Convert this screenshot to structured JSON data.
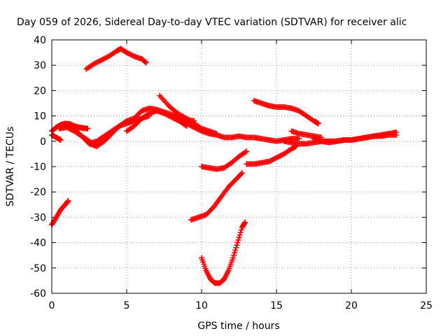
{
  "chart_data": {
    "type": "scatter",
    "title": "Day 059 of 2026, Sidereal Day-to-day VTEC variation (SDTVAR) for receiver alic",
    "xlabel": "GPS time / hours",
    "ylabel": "SDTVAR / TECUs",
    "xlim": [
      0,
      25
    ],
    "ylim": [
      -60,
      40
    ],
    "xticks": [
      "0",
      "5",
      "10",
      "15",
      "20",
      "25"
    ],
    "yticks": [
      "-60",
      "-50",
      "-40",
      "-30",
      "-20",
      "-10",
      "0",
      "10",
      "20",
      "30",
      "40"
    ],
    "grid": true,
    "legend": "none",
    "marker": "plus",
    "color": "#ff0000",
    "series": [
      {
        "x": [
          0.0,
          0.3,
          0.6,
          0.9,
          1.2,
          1.5,
          1.8,
          2.1,
          2.4
        ],
        "y": [
          4,
          5.5,
          6.5,
          7,
          6.8,
          6,
          5.5,
          5.2,
          5
        ]
      },
      {
        "x": [
          0.0,
          0.3,
          0.6
        ],
        "y": [
          2.5,
          1.5,
          0.5
        ]
      },
      {
        "x": [
          0.5,
          1.0,
          1.5,
          2.0,
          2.5,
          3.0
        ],
        "y": [
          5,
          5.5,
          4,
          2,
          0,
          -1.5
        ]
      },
      {
        "x": [
          1.0,
          1.5,
          2.0,
          2.5,
          3.0,
          3.5,
          4.0,
          4.5,
          5.0,
          5.5,
          6.0,
          6.5,
          7.0,
          7.5,
          8.0,
          8.5,
          9.0,
          9.5
        ],
        "y": [
          6,
          5,
          2,
          -1,
          -2,
          0,
          3,
          6,
          8,
          9,
          12,
          13,
          12.5,
          11.5,
          10.5,
          9.5,
          8.5,
          8
        ]
      },
      {
        "x": [
          2.5,
          3.0,
          3.5,
          4.0,
          4.5,
          5.0,
          5.5,
          6.0,
          6.5
        ],
        "y": [
          -1,
          0,
          2,
          4,
          6,
          7,
          8,
          9,
          10
        ]
      },
      {
        "x": [
          5.0,
          5.5,
          6.0,
          6.5,
          7.0,
          7.5,
          8.0,
          8.5,
          9.0
        ],
        "y": [
          4,
          6,
          9,
          11,
          12,
          11,
          9.5,
          8,
          6
        ]
      },
      {
        "x": [
          7.2,
          7.8,
          8.4,
          9.0,
          9.5,
          10.0,
          10.5,
          11.0
        ],
        "y": [
          18,
          14,
          11,
          9,
          7,
          5,
          4,
          3
        ]
      },
      {
        "x": [
          8.5,
          9.0,
          9.5,
          10.0,
          10.5,
          11.0,
          11.5,
          12.0,
          12.5,
          13.0,
          13.5,
          14.0,
          14.5,
          15.0,
          15.5,
          16.0,
          16.5
        ],
        "y": [
          9,
          7,
          5.5,
          4,
          3,
          2.5,
          1.5,
          1.5,
          2,
          1.5,
          1.5,
          1,
          0.5,
          0,
          0.5,
          1,
          1
        ]
      },
      {
        "x": [
          15.5,
          16.0,
          16.5,
          17.0,
          17.5,
          18.0,
          18.5,
          19.0,
          19.5,
          20.0,
          20.5,
          21.0,
          21.5,
          22.0,
          22.5,
          23.0
        ],
        "y": [
          0,
          -0.5,
          -1,
          -1,
          -0.5,
          0,
          0,
          0,
          0.5,
          0.5,
          1,
          1.5,
          2,
          2.5,
          3,
          3.5
        ]
      },
      {
        "x": [
          16.0,
          16.5,
          17.0,
          17.5,
          18.0
        ],
        "y": [
          4,
          3,
          2.5,
          2,
          1.5
        ]
      },
      {
        "x": [
          17.5,
          18.0,
          18.5,
          19.0,
          19.5,
          20.0,
          20.5,
          21.0,
          21.5,
          22.0,
          22.5,
          23.0
        ],
        "y": [
          1,
          0,
          -0.5,
          0,
          0.5,
          0.5,
          1,
          1.5,
          2,
          2,
          2.5,
          2.5
        ]
      },
      {
        "x": [
          13.5,
          14.0,
          14.5,
          15.0,
          15.5,
          16.0,
          16.5,
          17.0,
          17.5,
          17.8
        ],
        "y": [
          16,
          15,
          14,
          13.5,
          13.5,
          13,
          12,
          10,
          8,
          7
        ]
      },
      {
        "x": [
          2.3,
          2.8,
          3.3,
          3.8,
          4.3,
          4.6,
          5.0,
          5.5,
          6.0,
          6.3
        ],
        "y": [
          28.5,
          30.5,
          32,
          33.5,
          35.5,
          36.5,
          35,
          33.5,
          32.5,
          31
        ]
      },
      {
        "x": [
          0.0,
          0.3,
          0.6,
          0.9,
          1.1
        ],
        "y": [
          -33,
          -30,
          -27,
          -25,
          -23.5
        ]
      },
      {
        "x": [
          9.3,
          9.8,
          10.3,
          10.8,
          11.3,
          11.8,
          12.3,
          12.7
        ],
        "y": [
          -31,
          -30,
          -29,
          -26,
          -22,
          -18,
          -15,
          -12.5
        ]
      },
      {
        "x": [
          10.0,
          10.5,
          11.0,
          11.5,
          12.0,
          12.5,
          13.0
        ],
        "y": [
          -10,
          -10.5,
          -11,
          -10.5,
          -8.5,
          -6,
          -4
        ]
      },
      {
        "x": [
          13.0,
          13.5,
          14.0,
          14.5,
          15.0,
          15.5,
          16.0,
          16.3
        ],
        "y": [
          -9,
          -9,
          -8.5,
          -8,
          -6.5,
          -5,
          -3,
          -2
        ]
      },
      {
        "x": [
          10.0,
          10.3,
          10.6,
          10.9,
          11.2,
          11.5,
          11.8,
          12.1,
          12.4,
          12.7,
          12.9
        ],
        "y": [
          -46,
          -51,
          -54.5,
          -56,
          -56,
          -54.5,
          -51,
          -46,
          -40,
          -34,
          -32
        ]
      }
    ]
  }
}
